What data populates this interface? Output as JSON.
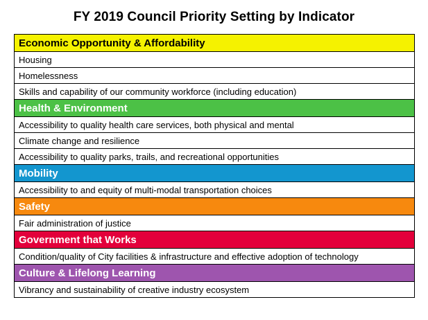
{
  "title": "FY 2019 Council Priority Setting by Indicator",
  "categories": [
    {
      "name": "Economic Opportunity & Affordability",
      "bg": "#f5f200",
      "fg": "#000000",
      "items": [
        "Housing",
        "Homelessness",
        "Skills and capability of our community workforce (including  education)"
      ]
    },
    {
      "name": "Health & Environment",
      "bg": "#4cc146",
      "fg": "#ffffff",
      "items": [
        "Accessibility to quality health care services, both physical and  mental",
        "Climate change and resilience",
        "Accessibility to quality parks, trails, and recreational opportunities"
      ]
    },
    {
      "name": "Mobility",
      "bg": "#1396cf",
      "fg": "#ffffff",
      "items": [
        "Accessibility to and equity of multi-modal transportation choices"
      ]
    },
    {
      "name": "Safety",
      "bg": "#f7890e",
      "fg": "#ffffff",
      "items": [
        "Fair administration of justice"
      ]
    },
    {
      "name": "Government that Works",
      "bg": "#e3003b",
      "fg": "#ffffff",
      "items": [
        "Condition/quality of City facilities & infrastructure and effective adoption of technology"
      ]
    },
    {
      "name": "Culture & Lifelong Learning",
      "bg": "#9e55ae",
      "fg": "#ffffff",
      "items": [
        "Vibrancy and sustainability of creative industry ecosystem"
      ]
    }
  ]
}
